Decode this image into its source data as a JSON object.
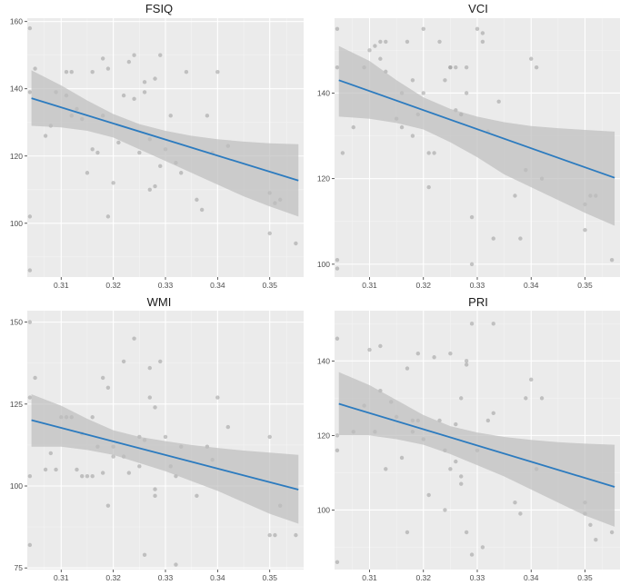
{
  "figure": {
    "description_free": true
  },
  "colors": {
    "panel_bg": "#ebebeb",
    "grid_major": "#ffffff",
    "grid_minor": "#f4f4f4",
    "point": "#9a9a9a",
    "ribbon": "#bdbdbd",
    "line": "#2c7bbf",
    "tick_text": "#4d4d4d",
    "title_text": "#1a1a1a"
  },
  "chart_data": [
    {
      "type": "scatter",
      "title": "FSIQ",
      "xlabel": "",
      "ylabel": "",
      "xlim": [
        0.3035,
        0.3565
      ],
      "ylim": [
        84,
        161
      ],
      "xticks": [
        0.31,
        0.32,
        0.33,
        0.34,
        0.35
      ],
      "xtick_labels": [
        "0.31",
        "0.32",
        "0.33",
        "0.34",
        "0.35"
      ],
      "yticks": [
        100,
        120,
        140,
        160
      ],
      "ytick_labels": [
        "100",
        "120",
        "140",
        "160"
      ],
      "points": [
        [
          0.304,
          158
        ],
        [
          0.304,
          139
        ],
        [
          0.304,
          102
        ],
        [
          0.304,
          86
        ],
        [
          0.305,
          146
        ],
        [
          0.307,
          126
        ],
        [
          0.308,
          129
        ],
        [
          0.309,
          139
        ],
        [
          0.311,
          138
        ],
        [
          0.311,
          145
        ],
        [
          0.312,
          145
        ],
        [
          0.312,
          132
        ],
        [
          0.313,
          134
        ],
        [
          0.314,
          131
        ],
        [
          0.315,
          115
        ],
        [
          0.316,
          145
        ],
        [
          0.316,
          122
        ],
        [
          0.317,
          121
        ],
        [
          0.318,
          149
        ],
        [
          0.318,
          132
        ],
        [
          0.319,
          146
        ],
        [
          0.319,
          102
        ],
        [
          0.32,
          112
        ],
        [
          0.321,
          124
        ],
        [
          0.322,
          138
        ],
        [
          0.323,
          148
        ],
        [
          0.324,
          150
        ],
        [
          0.324,
          137
        ],
        [
          0.325,
          121
        ],
        [
          0.326,
          142
        ],
        [
          0.326,
          139
        ],
        [
          0.327,
          110
        ],
        [
          0.327,
          125
        ],
        [
          0.328,
          111
        ],
        [
          0.328,
          143
        ],
        [
          0.329,
          117
        ],
        [
          0.329,
          150
        ],
        [
          0.33,
          122
        ],
        [
          0.331,
          132
        ],
        [
          0.332,
          118
        ],
        [
          0.333,
          115
        ],
        [
          0.334,
          145
        ],
        [
          0.336,
          107
        ],
        [
          0.337,
          104
        ],
        [
          0.338,
          132
        ],
        [
          0.339,
          121
        ],
        [
          0.34,
          145
        ],
        [
          0.342,
          123
        ],
        [
          0.35,
          109
        ],
        [
          0.35,
          97
        ],
        [
          0.351,
          106
        ],
        [
          0.352,
          107
        ],
        [
          0.355,
          94
        ]
      ],
      "fit": {
        "x": [
          0.3043,
          0.3555
        ],
        "y": [
          137.2,
          112.7
        ]
      },
      "ribbon": {
        "x": [
          0.3043,
          0.31,
          0.315,
          0.32,
          0.325,
          0.33,
          0.335,
          0.34,
          0.345,
          0.35,
          0.3555
        ],
        "lower": [
          129.0,
          128.5,
          127.5,
          125.5,
          122.0,
          118.5,
          115.0,
          111.5,
          108.0,
          105.0,
          102.0
        ],
        "upper": [
          145.5,
          141.0,
          136.5,
          132.5,
          129.5,
          127.5,
          126.0,
          125.0,
          124.3,
          123.8,
          123.5
        ]
      }
    },
    {
      "type": "scatter",
      "title": "VCI",
      "xlabel": "",
      "ylabel": "",
      "xlim": [
        0.3035,
        0.3565
      ],
      "ylim": [
        97,
        157.5
      ],
      "xticks": [
        0.31,
        0.32,
        0.33,
        0.34,
        0.35
      ],
      "xtick_labels": [
        "0.31",
        "0.32",
        "0.33",
        "0.34",
        "0.35"
      ],
      "yticks": [
        100,
        120,
        140
      ],
      "ytick_labels": [
        "100",
        "120",
        "140"
      ],
      "points": [
        [
          0.304,
          146
        ],
        [
          0.304,
          155
        ],
        [
          0.304,
          101
        ],
        [
          0.304,
          99
        ],
        [
          0.305,
          126
        ],
        [
          0.307,
          132
        ],
        [
          0.309,
          146
        ],
        [
          0.31,
          150
        ],
        [
          0.311,
          151
        ],
        [
          0.312,
          152
        ],
        [
          0.312,
          148
        ],
        [
          0.313,
          145
        ],
        [
          0.313,
          152
        ],
        [
          0.315,
          134
        ],
        [
          0.316,
          132
        ],
        [
          0.316,
          140
        ],
        [
          0.317,
          152
        ],
        [
          0.318,
          130
        ],
        [
          0.318,
          143
        ],
        [
          0.319,
          135
        ],
        [
          0.32,
          140
        ],
        [
          0.32,
          155
        ],
        [
          0.321,
          118
        ],
        [
          0.321,
          126
        ],
        [
          0.322,
          126
        ],
        [
          0.323,
          152
        ],
        [
          0.324,
          143
        ],
        [
          0.325,
          146
        ],
        [
          0.325,
          146
        ],
        [
          0.326,
          136
        ],
        [
          0.326,
          146
        ],
        [
          0.327,
          135
        ],
        [
          0.327,
          135
        ],
        [
          0.328,
          146
        ],
        [
          0.328,
          140
        ],
        [
          0.329,
          111
        ],
        [
          0.329,
          100
        ],
        [
          0.33,
          155
        ],
        [
          0.331,
          154
        ],
        [
          0.331,
          152
        ],
        [
          0.332,
          131
        ],
        [
          0.333,
          106
        ],
        [
          0.334,
          138
        ],
        [
          0.337,
          116
        ],
        [
          0.338,
          106
        ],
        [
          0.339,
          122
        ],
        [
          0.34,
          148
        ],
        [
          0.341,
          146
        ],
        [
          0.342,
          120
        ],
        [
          0.35,
          108
        ],
        [
          0.35,
          114
        ],
        [
          0.351,
          116
        ],
        [
          0.352,
          116
        ],
        [
          0.355,
          101
        ]
      ],
      "fit": {
        "x": [
          0.3043,
          0.3555
        ],
        "y": [
          143.0,
          120.2
        ]
      },
      "ribbon": {
        "x": [
          0.3043,
          0.31,
          0.315,
          0.32,
          0.325,
          0.33,
          0.335,
          0.34,
          0.345,
          0.35,
          0.3555
        ],
        "lower": [
          134.5,
          134.0,
          133.0,
          131.5,
          128.5,
          125.0,
          121.0,
          118.0,
          115.0,
          112.0,
          109.0
        ],
        "upper": [
          151.0,
          147.5,
          143.0,
          139.0,
          136.3,
          134.5,
          133.2,
          132.3,
          131.8,
          131.4,
          131.0
        ]
      }
    },
    {
      "type": "scatter",
      "title": "WMI",
      "xlabel": "",
      "ylabel": "",
      "xlim": [
        0.3035,
        0.3565
      ],
      "ylim": [
        74.5,
        153.5
      ],
      "xticks": [
        0.31,
        0.32,
        0.33,
        0.34,
        0.35
      ],
      "xtick_labels": [
        "0.31",
        "0.32",
        "0.33",
        "0.34",
        "0.35"
      ],
      "yticks": [
        75,
        100,
        125,
        150
      ],
      "ytick_labels": [
        "75",
        "100",
        "125",
        "150"
      ],
      "points": [
        [
          0.304,
          150
        ],
        [
          0.304,
          127
        ],
        [
          0.304,
          82
        ],
        [
          0.304,
          103
        ],
        [
          0.305,
          133
        ],
        [
          0.307,
          105
        ],
        [
          0.308,
          110
        ],
        [
          0.309,
          105
        ],
        [
          0.31,
          121
        ],
        [
          0.311,
          121
        ],
        [
          0.312,
          121
        ],
        [
          0.313,
          105
        ],
        [
          0.314,
          116
        ],
        [
          0.314,
          103
        ],
        [
          0.315,
          103
        ],
        [
          0.316,
          121
        ],
        [
          0.316,
          103
        ],
        [
          0.317,
          112
        ],
        [
          0.318,
          104
        ],
        [
          0.318,
          133
        ],
        [
          0.319,
          130
        ],
        [
          0.319,
          94
        ],
        [
          0.32,
          109
        ],
        [
          0.32,
          112
        ],
        [
          0.322,
          109
        ],
        [
          0.322,
          138
        ],
        [
          0.323,
          104
        ],
        [
          0.324,
          145
        ],
        [
          0.325,
          115
        ],
        [
          0.325,
          106
        ],
        [
          0.326,
          79
        ],
        [
          0.326,
          114
        ],
        [
          0.327,
          136
        ],
        [
          0.327,
          127
        ],
        [
          0.328,
          124
        ],
        [
          0.328,
          99
        ],
        [
          0.328,
          97
        ],
        [
          0.329,
          138
        ],
        [
          0.33,
          115
        ],
        [
          0.331,
          106
        ],
        [
          0.332,
          103
        ],
        [
          0.332,
          76
        ],
        [
          0.333,
          112
        ],
        [
          0.336,
          97
        ],
        [
          0.338,
          112
        ],
        [
          0.339,
          108
        ],
        [
          0.34,
          127
        ],
        [
          0.342,
          118
        ],
        [
          0.35,
          115
        ],
        [
          0.35,
          85
        ],
        [
          0.351,
          85
        ],
        [
          0.352,
          94
        ],
        [
          0.355,
          85
        ]
      ],
      "fit": {
        "x": [
          0.3043,
          0.3555
        ],
        "y": [
          120.1,
          98.9
        ]
      },
      "ribbon": {
        "x": [
          0.3043,
          0.31,
          0.315,
          0.32,
          0.325,
          0.33,
          0.335,
          0.34,
          0.345,
          0.35,
          0.3555
        ],
        "lower": [
          112.0,
          112.0,
          111.0,
          109.5,
          107.0,
          104.5,
          101.5,
          98.5,
          95.0,
          91.5,
          88.5
        ],
        "upper": [
          128.0,
          124.5,
          120.5,
          117.0,
          115.0,
          113.7,
          112.5,
          111.6,
          110.8,
          110.2,
          109.5
        ]
      }
    },
    {
      "type": "scatter",
      "title": "PRI",
      "xlabel": "",
      "ylabel": "",
      "xlim": [
        0.3035,
        0.3565
      ],
      "ylim": [
        84,
        153.5
      ],
      "xticks": [
        0.31,
        0.32,
        0.33,
        0.34,
        0.35
      ],
      "xtick_labels": [
        "0.31",
        "0.32",
        "0.33",
        "0.34",
        "0.35"
      ],
      "yticks": [
        100,
        120,
        140
      ],
      "ytick_labels": [
        "100",
        "120",
        "140"
      ],
      "points": [
        [
          0.304,
          146
        ],
        [
          0.304,
          120
        ],
        [
          0.304,
          116
        ],
        [
          0.304,
          86
        ],
        [
          0.307,
          121
        ],
        [
          0.309,
          128
        ],
        [
          0.31,
          143
        ],
        [
          0.311,
          121
        ],
        [
          0.312,
          144
        ],
        [
          0.312,
          132
        ],
        [
          0.313,
          111
        ],
        [
          0.314,
          129
        ],
        [
          0.315,
          125
        ],
        [
          0.316,
          114
        ],
        [
          0.317,
          138
        ],
        [
          0.317,
          94
        ],
        [
          0.318,
          121
        ],
        [
          0.318,
          124
        ],
        [
          0.319,
          142
        ],
        [
          0.319,
          124
        ],
        [
          0.32,
          119
        ],
        [
          0.321,
          104
        ],
        [
          0.322,
          141
        ],
        [
          0.323,
          124
        ],
        [
          0.324,
          116
        ],
        [
          0.324,
          100
        ],
        [
          0.325,
          111
        ],
        [
          0.325,
          142
        ],
        [
          0.326,
          123
        ],
        [
          0.326,
          113
        ],
        [
          0.327,
          130
        ],
        [
          0.327,
          109
        ],
        [
          0.327,
          107
        ],
        [
          0.328,
          139
        ],
        [
          0.328,
          140
        ],
        [
          0.328,
          94
        ],
        [
          0.329,
          150
        ],
        [
          0.329,
          88
        ],
        [
          0.33,
          116
        ],
        [
          0.331,
          90
        ],
        [
          0.332,
          124
        ],
        [
          0.333,
          150
        ],
        [
          0.333,
          126
        ],
        [
          0.337,
          102
        ],
        [
          0.338,
          99
        ],
        [
          0.339,
          130
        ],
        [
          0.34,
          135
        ],
        [
          0.341,
          111
        ],
        [
          0.342,
          130
        ],
        [
          0.35,
          102
        ],
        [
          0.35,
          99
        ],
        [
          0.351,
          96
        ],
        [
          0.352,
          92
        ],
        [
          0.355,
          94
        ]
      ],
      "fit": {
        "x": [
          0.3043,
          0.3555
        ],
        "y": [
          128.5,
          106.2
        ]
      },
      "ribbon": {
        "x": [
          0.3043,
          0.31,
          0.315,
          0.32,
          0.325,
          0.33,
          0.335,
          0.34,
          0.345,
          0.35,
          0.3555
        ],
        "lower": [
          120.0,
          120.0,
          119.0,
          117.5,
          115.0,
          112.0,
          109.0,
          105.5,
          102.0,
          98.5,
          95.5
        ],
        "upper": [
          137.0,
          133.5,
          129.5,
          125.5,
          122.5,
          120.8,
          119.6,
          118.8,
          118.2,
          117.8,
          117.5
        ]
      }
    }
  ]
}
